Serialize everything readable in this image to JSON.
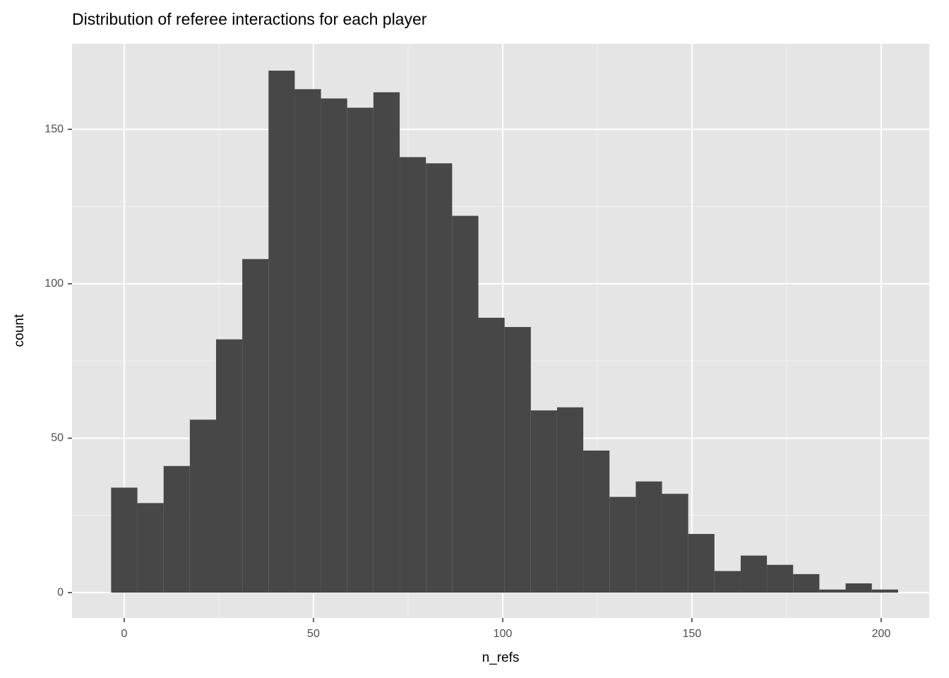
{
  "chart_data": {
    "type": "histogram",
    "title": "Distribution of referee interactions for each player",
    "x_label": "n_refs",
    "y_label": "count",
    "bins": [
      -3.47,
      3.47,
      10.4,
      17.33,
      24.26,
      31.19,
      38.12,
      45.05,
      51.98,
      58.91,
      65.84,
      72.78,
      79.71,
      86.64,
      93.57,
      100.5,
      107.43,
      114.36,
      121.29,
      128.22,
      135.16,
      142.09,
      149.02,
      155.95,
      162.88,
      169.81,
      176.74,
      183.67,
      190.6,
      197.53,
      204.47
    ],
    "values": [
      34,
      29,
      41,
      56,
      82,
      108,
      169,
      163,
      160,
      157,
      162,
      141,
      139,
      122,
      89,
      86,
      59,
      60,
      46,
      31,
      36,
      32,
      19,
      7,
      12,
      9,
      6,
      1,
      3,
      1
    ],
    "color": "#474747",
    "xlim": [
      -13.8,
      212.7
    ],
    "xticks": [
      0,
      50,
      100,
      150,
      200
    ],
    "ylim": [
      -8.2,
      177.7
    ],
    "yticks": [
      0,
      50,
      100,
      150
    ],
    "grid": true
  }
}
